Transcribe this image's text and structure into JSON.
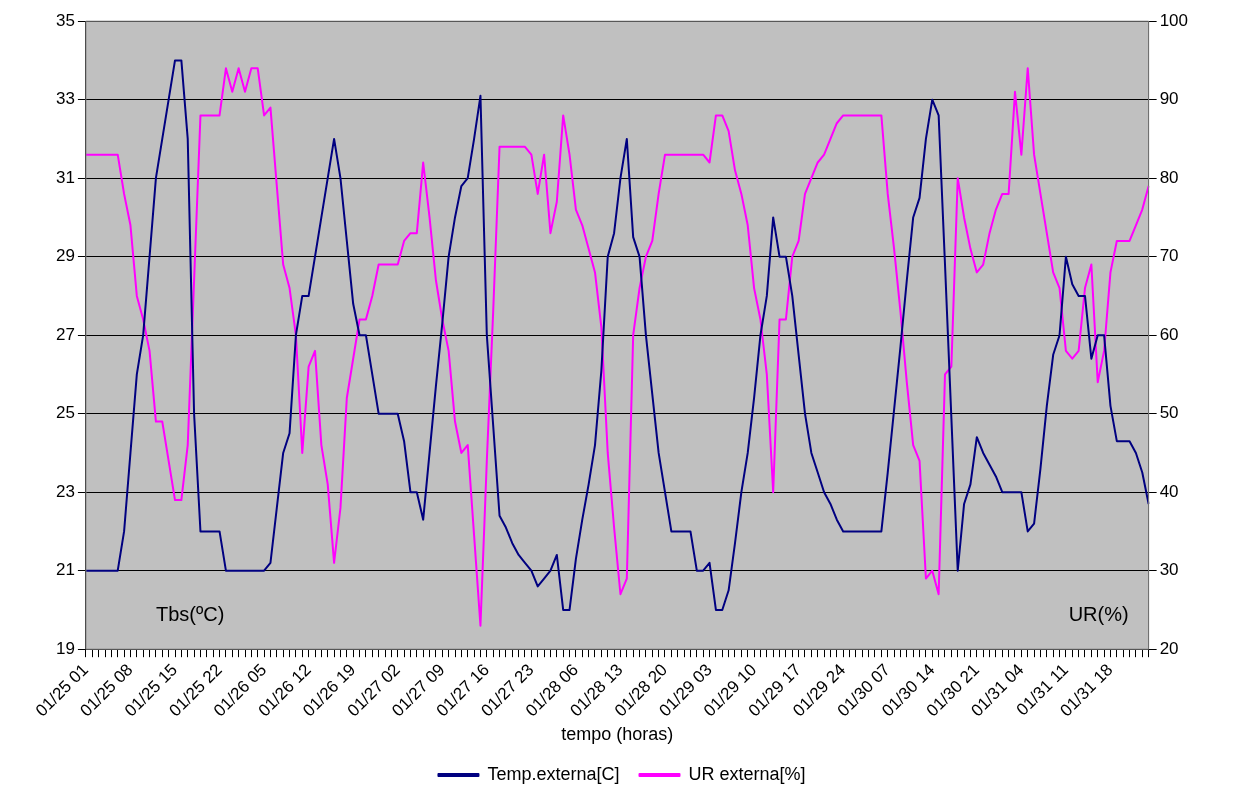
{
  "chart_data": {
    "type": "line",
    "xlabel": "tempo (horas)",
    "ylabel": "Tbs(ºC)",
    "y2label": "UR(%)",
    "categories": [
      "01/25 01",
      null,
      null,
      null,
      null,
      null,
      null,
      "01/25 08",
      null,
      null,
      null,
      null,
      null,
      null,
      "01/25 15",
      null,
      null,
      null,
      null,
      null,
      null,
      "01/25 22",
      null,
      null,
      null,
      null,
      null,
      null,
      "01/26 05",
      null,
      null,
      null,
      null,
      null,
      null,
      "01/26 12",
      null,
      null,
      null,
      null,
      null,
      null,
      "01/26 19",
      null,
      null,
      null,
      null,
      null,
      null,
      "01/27 02",
      null,
      null,
      null,
      null,
      null,
      null,
      "01/27 09",
      null,
      null,
      null,
      null,
      null,
      null,
      "01/27 16",
      null,
      null,
      null,
      null,
      null,
      null,
      "01/27 23",
      null,
      null,
      null,
      null,
      null,
      null,
      "01/28 06",
      null,
      null,
      null,
      null,
      null,
      null,
      "01/28 13",
      null,
      null,
      null,
      null,
      null,
      null,
      "01/28 20",
      null,
      null,
      null,
      null,
      null,
      null,
      "01/29 03",
      null,
      null,
      null,
      null,
      null,
      null,
      "01/29 10",
      null,
      null,
      null,
      null,
      null,
      null,
      "01/29 17",
      null,
      null,
      null,
      null,
      null,
      null,
      "01/29 24",
      null,
      null,
      null,
      null,
      null,
      null,
      "01/30 07",
      null,
      null,
      null,
      null,
      null,
      null,
      "01/30 14",
      null,
      null,
      null,
      null,
      null,
      null,
      "01/30 21",
      null,
      null,
      null,
      null,
      null,
      null,
      "01/31 04",
      null,
      null,
      null,
      null,
      null,
      null,
      "01/31 11",
      null,
      null,
      null,
      null,
      null,
      null,
      "01/31 18",
      null,
      null,
      null,
      null,
      null,
      null
    ],
    "series": [
      {
        "name": "Temp.externa[C]",
        "color": "#000080",
        "values": [
          21,
          21,
          21,
          21,
          21,
          21,
          22,
          24,
          26,
          27,
          29,
          31,
          32,
          33,
          34,
          34,
          32,
          25,
          22,
          22,
          22,
          22,
          21,
          21,
          21,
          21,
          21,
          21,
          21,
          21.2,
          22.6,
          24,
          24.5,
          27,
          28,
          28,
          29,
          30,
          31,
          32,
          31,
          29.4,
          27.8,
          27,
          27,
          26,
          25,
          25,
          25,
          25,
          24.3,
          23,
          23,
          22.3,
          24,
          25.7,
          27.3,
          29,
          30,
          30.8,
          31,
          32,
          33.1,
          27,
          24.7,
          22.4,
          22.1,
          21.7,
          21.4,
          21.2,
          21,
          20.6,
          20.8,
          21,
          21.4,
          20,
          20,
          21.3,
          22.3,
          23.2,
          24.2,
          26.1,
          29,
          29.6,
          31,
          32,
          29.5,
          29,
          27,
          25.5,
          24,
          23,
          22,
          22,
          22,
          22,
          21,
          21,
          21.2,
          20,
          20,
          20.5,
          21.7,
          23,
          24,
          25.4,
          27,
          28,
          30,
          29,
          29,
          28,
          26.5,
          25,
          24,
          23.5,
          23,
          22.7,
          22.3,
          22,
          22,
          22,
          22,
          22,
          22,
          22,
          23.5,
          25.1,
          26.7,
          28.4,
          30,
          30.5,
          32,
          33,
          32.6,
          28.8,
          24.9,
          21,
          22.7,
          23.2,
          24.4,
          24,
          23.7,
          23.4,
          23,
          23,
          23,
          23,
          22,
          22.2,
          23.6,
          25.2,
          26.5,
          27,
          29,
          28.3,
          28,
          28,
          26.4,
          27,
          27,
          25.2,
          24.3,
          24.3,
          24.3,
          24,
          23.5,
          22.7
        ]
      },
      {
        "name": "UR externa[%]",
        "color": "#ff00ff",
        "axis": "y2",
        "values": [
          83,
          83,
          83,
          83,
          83,
          83,
          78,
          74,
          65,
          62,
          58,
          49,
          49,
          44,
          39,
          39,
          46,
          67,
          88,
          88,
          88,
          88,
          94,
          91,
          94,
          91,
          94,
          94,
          88,
          89,
          79,
          69,
          66,
          60,
          45,
          56,
          58,
          46,
          41,
          31,
          38,
          52,
          57,
          62,
          62,
          65,
          69,
          69,
          69,
          69,
          72,
          73,
          73,
          82,
          75,
          67,
          62,
          58,
          49,
          45,
          46,
          34.5,
          23,
          44,
          63,
          84,
          84,
          84,
          84,
          84,
          83,
          78,
          83,
          73,
          77,
          88,
          83,
          76,
          74,
          71,
          68,
          61,
          45,
          35.5,
          27,
          29,
          60,
          66,
          70,
          72,
          78,
          83,
          83,
          83,
          83,
          83,
          83,
          83,
          82,
          88,
          88,
          86,
          81,
          78,
          74,
          66,
          62,
          55,
          40,
          62,
          62,
          70,
          72,
          78,
          80,
          82,
          83,
          85,
          87,
          88,
          88,
          88,
          88,
          88,
          88,
          88,
          78,
          71,
          63,
          54,
          46,
          44,
          29,
          30,
          27,
          55,
          56,
          80,
          75,
          71,
          68,
          69,
          73,
          76,
          78,
          78,
          91,
          83,
          94,
          83,
          78,
          73,
          68,
          66,
          58,
          57,
          58,
          66,
          69,
          54,
          58,
          68,
          72,
          72,
          72,
          74,
          76,
          79
        ]
      }
    ],
    "ylim": [
      19,
      35
    ],
    "yticks": [
      19,
      21,
      23,
      25,
      27,
      29,
      31,
      33,
      35
    ],
    "y2lim": [
      20,
      100
    ],
    "y2ticks": [
      20,
      30,
      40,
      50,
      60,
      70,
      80,
      90,
      100
    ],
    "grid": "y",
    "legend": "bottom",
    "marker": "none",
    "line_style": "solid"
  }
}
